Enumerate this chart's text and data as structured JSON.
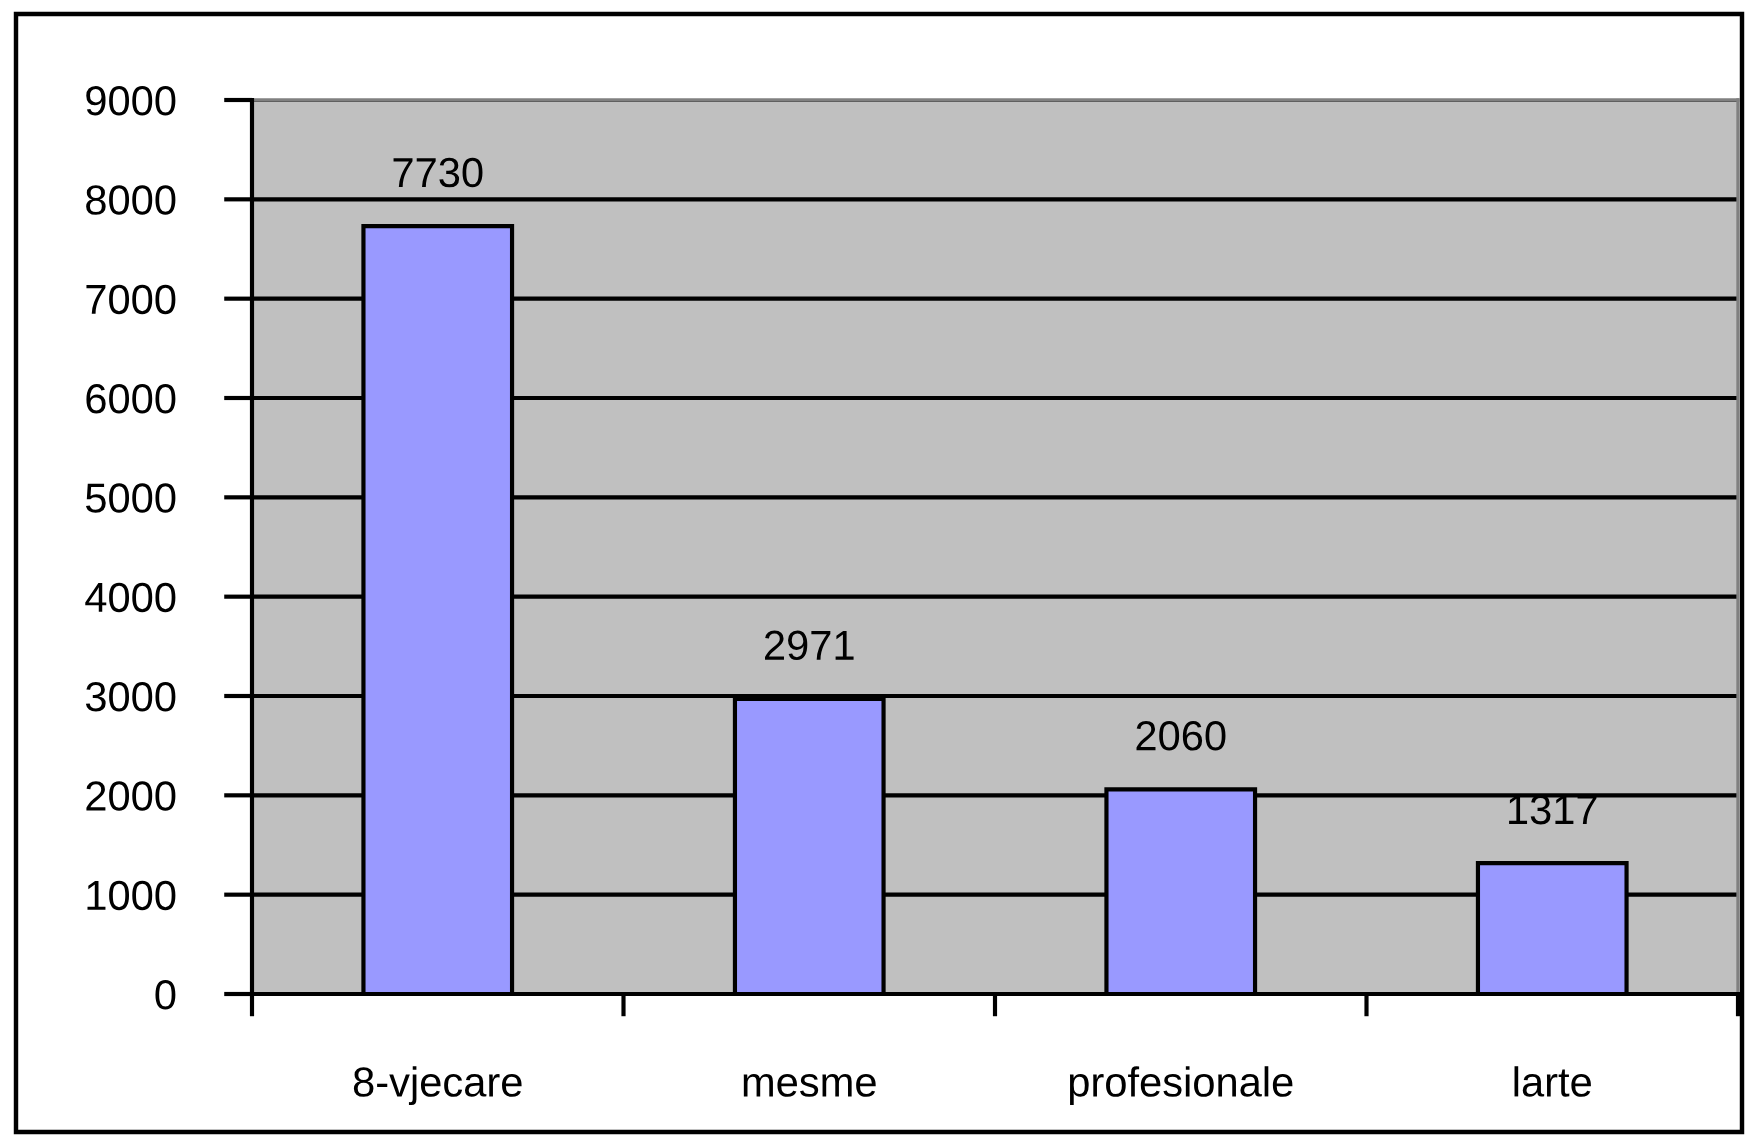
{
  "chart_data": {
    "type": "bar",
    "categories": [
      "8-vjecare",
      "mesme",
      "profesionale",
      "larte"
    ],
    "values": [
      7730,
      2971,
      2060,
      1317
    ],
    "color": "#9999ff",
    "ylim": [
      0,
      9000
    ],
    "yticks": [
      0,
      1000,
      2000,
      3000,
      4000,
      5000,
      6000,
      7000,
      8000,
      9000
    ],
    "grid": "y",
    "data_labels": true
  }
}
